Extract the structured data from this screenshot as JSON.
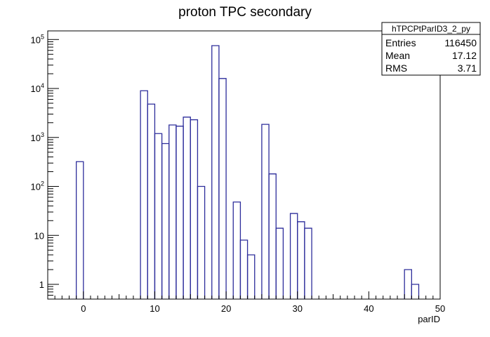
{
  "chart_data": {
    "type": "histogram",
    "title": "proton TPC secondary",
    "xlabel": "parID",
    "ylabel": "",
    "xlim": [
      -5,
      50
    ],
    "ylim": [
      0.5,
      150000
    ],
    "ylog": true,
    "grid": false,
    "bin_width": 1,
    "x_ticks": [
      {
        "v": 0,
        "label": "0"
      },
      {
        "v": 10,
        "label": "10"
      },
      {
        "v": 20,
        "label": "20"
      },
      {
        "v": 30,
        "label": "30"
      },
      {
        "v": 40,
        "label": "40"
      },
      {
        "v": 50,
        "label": "50"
      }
    ],
    "y_ticks": [
      {
        "v": 1,
        "base": "1",
        "exp": ""
      },
      {
        "v": 10,
        "base": "10",
        "exp": ""
      },
      {
        "v": 100,
        "base": "10",
        "exp": "2"
      },
      {
        "v": 1000,
        "base": "10",
        "exp": "3"
      },
      {
        "v": 10000,
        "base": "10",
        "exp": "4"
      },
      {
        "v": 100000,
        "base": "10",
        "exp": "5"
      }
    ],
    "line_color": "#2d2d9b",
    "bins": [
      {
        "x": -1,
        "y": 320
      },
      {
        "x": 8,
        "y": 9000
      },
      {
        "x": 9,
        "y": 4800
      },
      {
        "x": 10,
        "y": 1200
      },
      {
        "x": 11,
        "y": 750
      },
      {
        "x": 12,
        "y": 1800
      },
      {
        "x": 13,
        "y": 1700
      },
      {
        "x": 14,
        "y": 2600
      },
      {
        "x": 15,
        "y": 2300
      },
      {
        "x": 16,
        "y": 100
      },
      {
        "x": 18,
        "y": 75000
      },
      {
        "x": 19,
        "y": 16000
      },
      {
        "x": 21,
        "y": 48
      },
      {
        "x": 22,
        "y": 8
      },
      {
        "x": 23,
        "y": 4
      },
      {
        "x": 25,
        "y": 1850
      },
      {
        "x": 26,
        "y": 180
      },
      {
        "x": 27,
        "y": 14
      },
      {
        "x": 29,
        "y": 28
      },
      {
        "x": 30,
        "y": 19
      },
      {
        "x": 31,
        "y": 14
      },
      {
        "x": 45,
        "y": 2
      },
      {
        "x": 46,
        "y": 1
      }
    ],
    "stats_box": {
      "name": "hTPCPtParID3_2_py",
      "rows": [
        {
          "label": "Entries",
          "value": "116450"
        },
        {
          "label": "Mean",
          "value": "17.12"
        },
        {
          "label": "RMS",
          "value": "3.71"
        }
      ]
    }
  }
}
